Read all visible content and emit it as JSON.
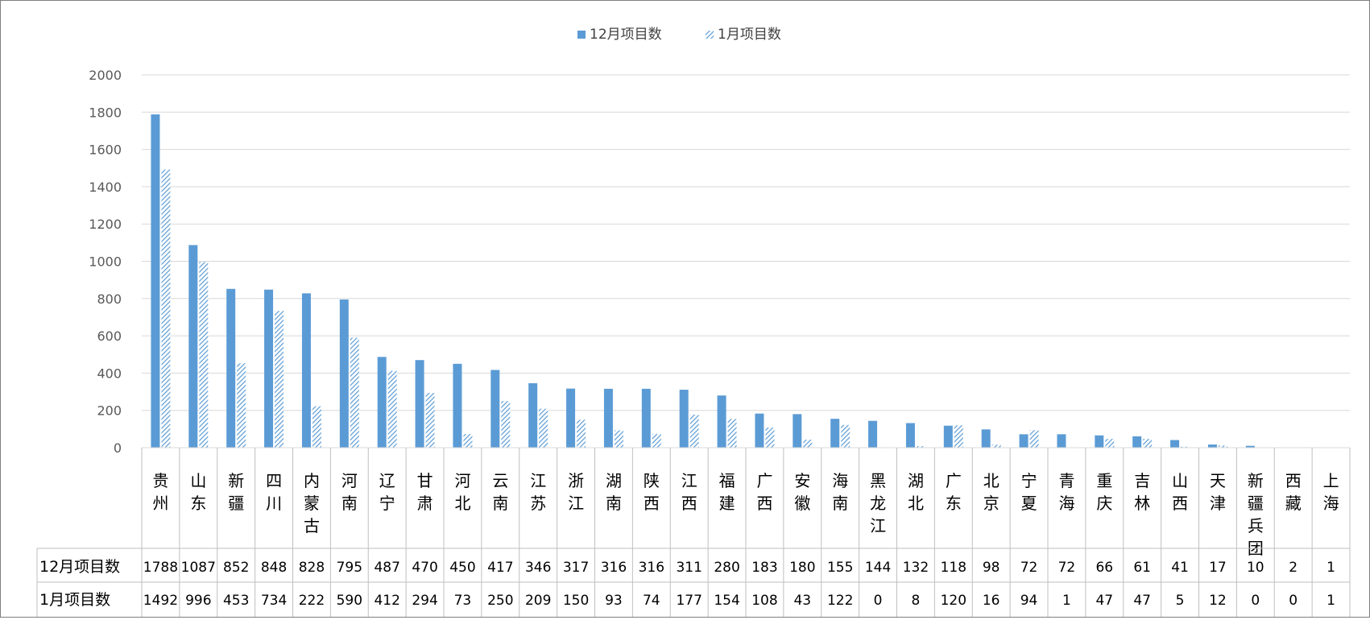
{
  "chart_data": {
    "type": "bar",
    "categories": [
      "贵州",
      "山东",
      "新疆",
      "四川",
      "内蒙古",
      "河南",
      "辽宁",
      "甘肃",
      "河北",
      "云南",
      "江苏",
      "浙江",
      "湖南",
      "陕西",
      "江西",
      "福建",
      "广西",
      "安徽",
      "海南",
      "黑龙江",
      "湖北",
      "广东",
      "北京",
      "宁夏",
      "青海",
      "重庆",
      "吉林",
      "山西",
      "天津",
      "新疆兵团",
      "西藏",
      "上海"
    ],
    "series": [
      {
        "name": "12月项目数",
        "values": [
          1788,
          1087,
          852,
          848,
          828,
          795,
          487,
          470,
          450,
          417,
          346,
          317,
          316,
          316,
          311,
          280,
          183,
          180,
          155,
          144,
          132,
          118,
          98,
          72,
          72,
          66,
          61,
          41,
          17,
          10,
          2,
          1
        ]
      },
      {
        "name": "1月项目数",
        "values": [
          1492,
          996,
          453,
          734,
          222,
          590,
          412,
          294,
          73,
          250,
          209,
          150,
          93,
          74,
          177,
          154,
          108,
          43,
          122,
          0,
          8,
          120,
          16,
          94,
          1,
          47,
          47,
          5,
          12,
          0,
          0,
          1
        ]
      }
    ],
    "ylim": [
      0,
      2000
    ],
    "yticks": [
      "0",
      "200",
      "400",
      "600",
      "800",
      "1000",
      "1200",
      "1400",
      "1600",
      "1800",
      "2000"
    ],
    "legend_position": "top-center",
    "grid": true,
    "data_table": true,
    "colors": {
      "dec": "#5B9BD5",
      "jan": "#5B9BD5",
      "grid": "#d9d9d9",
      "axis_text": "#595959",
      "table_border": "#bfbfbf"
    }
  }
}
